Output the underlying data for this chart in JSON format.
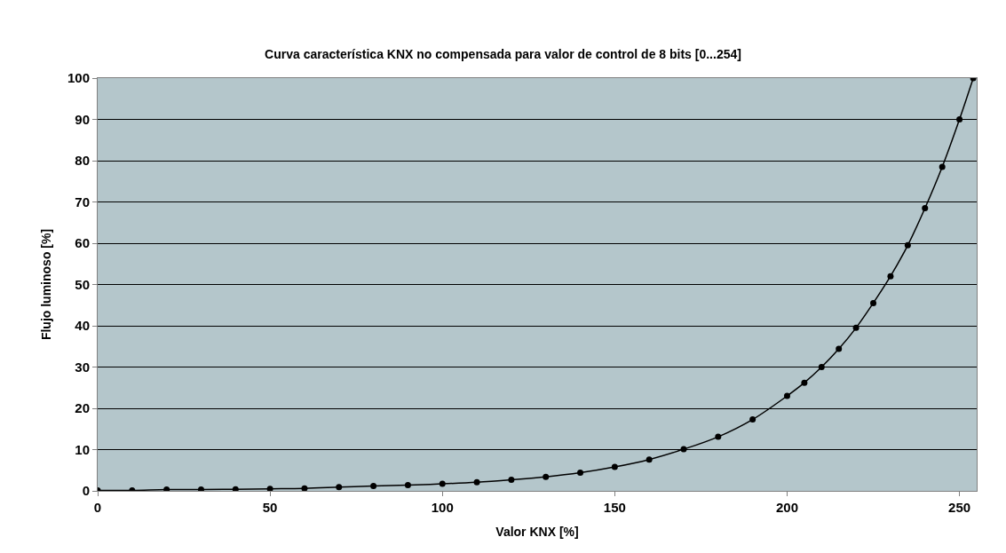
{
  "chart_data": {
    "type": "line",
    "title": "Curva característica KNX no compensada para valor de control de 8 bits [0...254]",
    "xlabel": "Valor KNX [%]",
    "ylabel": "Flujo luminoso [%]",
    "x": [
      0,
      10,
      20,
      30,
      40,
      50,
      60,
      70,
      80,
      90,
      100,
      110,
      120,
      130,
      140,
      150,
      160,
      170,
      180,
      190,
      200,
      205,
      210,
      215,
      220,
      225,
      230,
      235,
      240,
      245,
      250,
      254
    ],
    "series": [
      {
        "color": "#000000",
        "values": [
          0.1,
          0.1,
          0.3,
          0.3,
          0.4,
          0.5,
          0.6,
          0.9,
          1.2,
          1.4,
          1.7,
          2.1,
          2.7,
          3.4,
          4.4,
          5.8,
          7.6,
          10.1,
          13.1,
          17.3,
          23,
          26.2,
          30,
          34.4,
          39.5,
          45.5,
          52,
          59.5,
          68.5,
          78.5,
          90,
          100
        ]
      }
    ],
    "xlim": [
      0,
      255
    ],
    "xticks": [
      0,
      50,
      100,
      150,
      200,
      250
    ],
    "ylim": [
      0,
      100
    ],
    "yticks": [
      0,
      10,
      20,
      30,
      40,
      50,
      60,
      70,
      80,
      90,
      100
    ],
    "grid": "y",
    "legend": false,
    "marker": "circle",
    "line_style": "solid"
  }
}
